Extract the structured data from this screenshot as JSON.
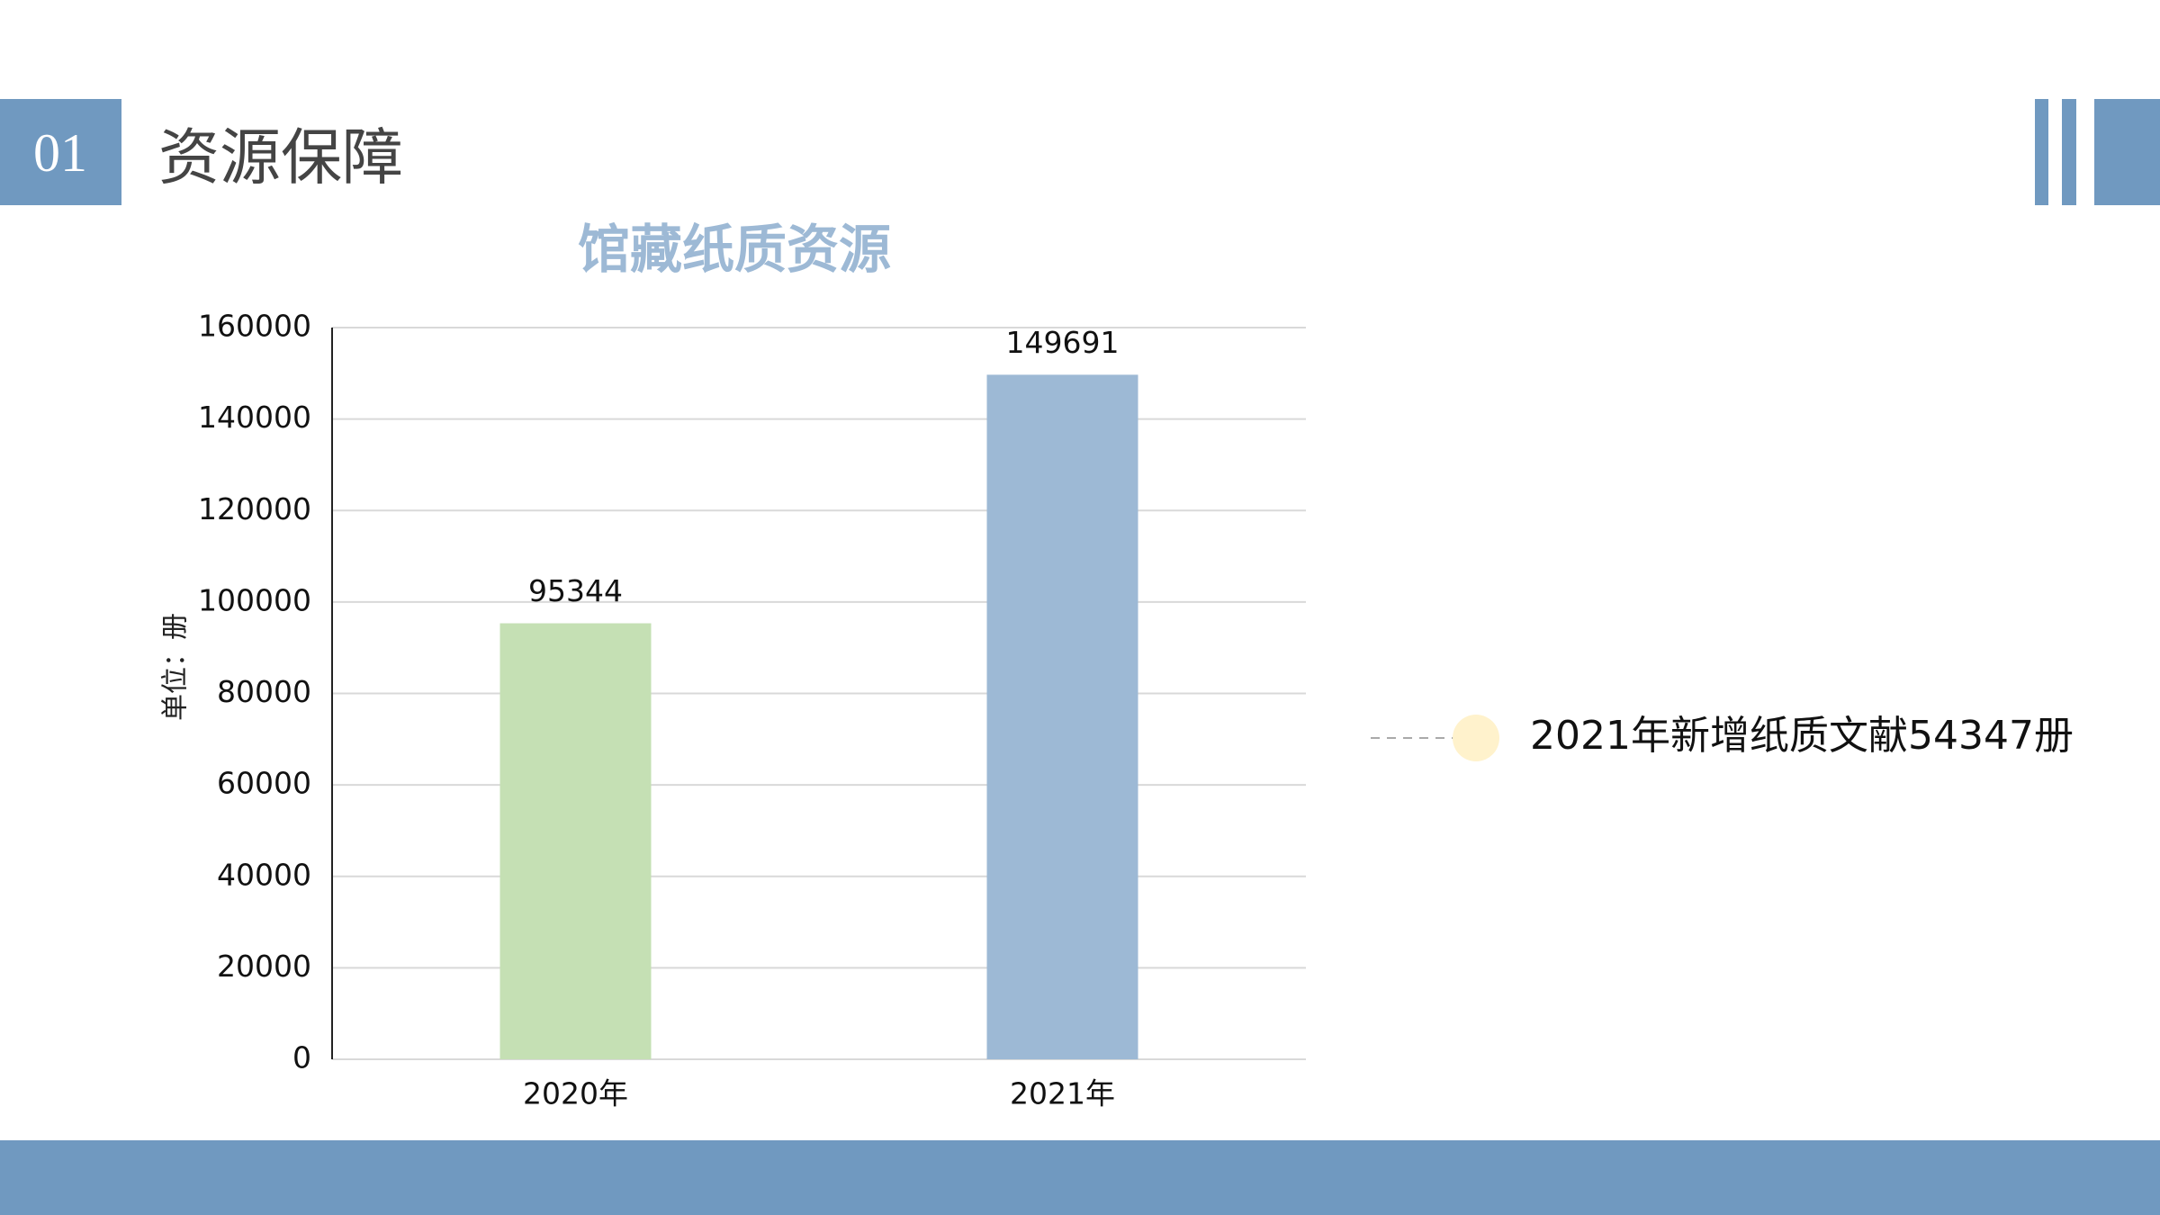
{
  "header": {
    "number": "01",
    "title": "资源保障"
  },
  "chart_data": {
    "type": "bar",
    "title": "馆藏纸质资源",
    "y_label": "单位：册",
    "categories": [
      "2020年",
      "2021年"
    ],
    "values": [
      95344,
      149691
    ],
    "colors": [
      "#c5e0b4",
      "#9db9d5"
    ],
    "ylim": [
      0,
      160000
    ],
    "yticks": [
      0,
      20000,
      40000,
      60000,
      80000,
      100000,
      120000,
      140000,
      160000
    ],
    "grid": true,
    "annotation": "2021年新增纸质文献54347册"
  }
}
